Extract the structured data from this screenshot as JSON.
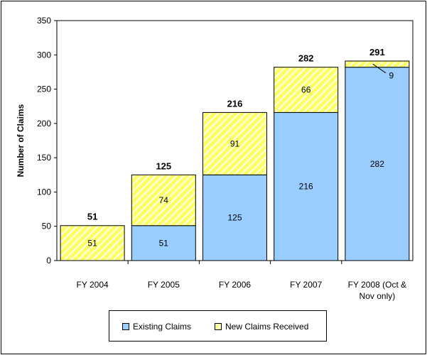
{
  "chart_data": {
    "type": "bar",
    "stacked": true,
    "categories": [
      "FY 2004",
      "FY 2005",
      "FY 2006",
      "FY 2007",
      "FY 2008 (Oct & Nov only)"
    ],
    "series": [
      {
        "name": "Existing Claims",
        "values": [
          0,
          51,
          125,
          216,
          282
        ],
        "color": "#99ccff",
        "pattern": "solid"
      },
      {
        "name": "New Claims Received",
        "values": [
          51,
          74,
          91,
          66,
          9
        ],
        "color": "#ffff66",
        "pattern": "diagonal-hatch"
      }
    ],
    "totals": [
      51,
      125,
      216,
      282,
      291
    ],
    "ylabel": "Number of Claims",
    "ylim": [
      0,
      350
    ],
    "yticks": [
      0,
      50,
      100,
      150,
      200,
      250,
      300,
      350
    ],
    "grid": false,
    "legend_position": "bottom"
  },
  "legend": {
    "existing_label": "Existing Claims",
    "new_label": "New Claims Received"
  }
}
